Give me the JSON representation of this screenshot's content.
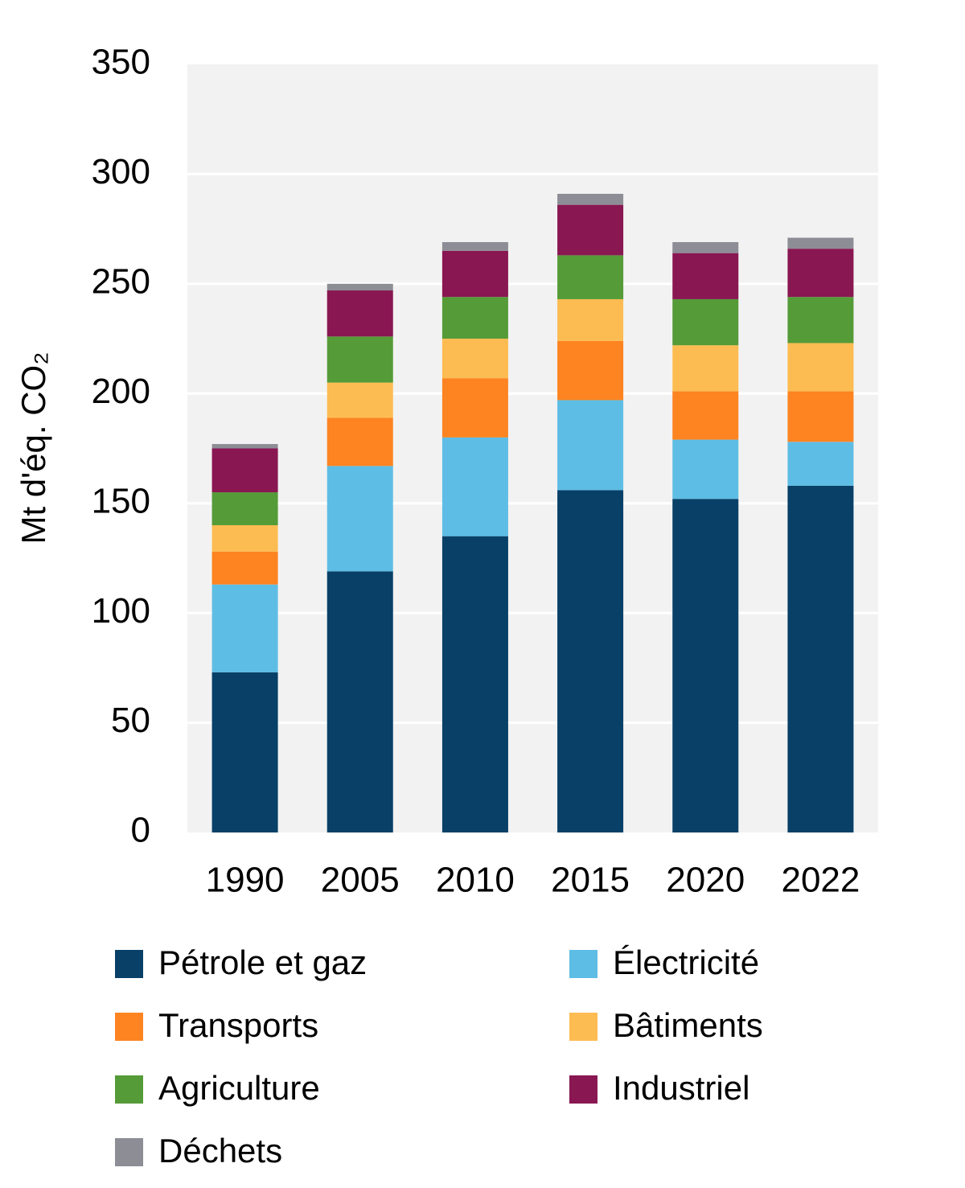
{
  "chart_data": {
    "type": "stacked_bar",
    "y_label": "Mt d'éq. CO₂",
    "categories": [
      "1990",
      "2005",
      "2010",
      "2015",
      "2020",
      "2022"
    ],
    "series": [
      {
        "name": "Pétrole et gaz",
        "color": "#084068",
        "values": [
          73,
          119,
          135,
          156,
          152,
          158
        ]
      },
      {
        "name": "Électricité",
        "color": "#5ebde4",
        "values": [
          40,
          48,
          45,
          41,
          27,
          20
        ]
      },
      {
        "name": "Transports",
        "color": "#fd8421",
        "values": [
          15,
          22,
          27,
          27,
          22,
          23
        ]
      },
      {
        "name": "Bâtiments",
        "color": "#fdbc51",
        "values": [
          12,
          16,
          18,
          19,
          21,
          22
        ]
      },
      {
        "name": "Agriculture",
        "color": "#559b38",
        "values": [
          15,
          21,
          19,
          20,
          21,
          21
        ]
      },
      {
        "name": "Industriel",
        "color": "#891752",
        "values": [
          20,
          21,
          21,
          23,
          21,
          22
        ]
      },
      {
        "name": "Déchets",
        "color": "#8d8d96",
        "values": [
          2,
          3,
          4,
          5,
          5,
          5
        ]
      }
    ],
    "ylim": [
      0,
      350
    ],
    "yticks": [
      0,
      50,
      100,
      150,
      200,
      250,
      300,
      350
    ],
    "grid": true
  }
}
